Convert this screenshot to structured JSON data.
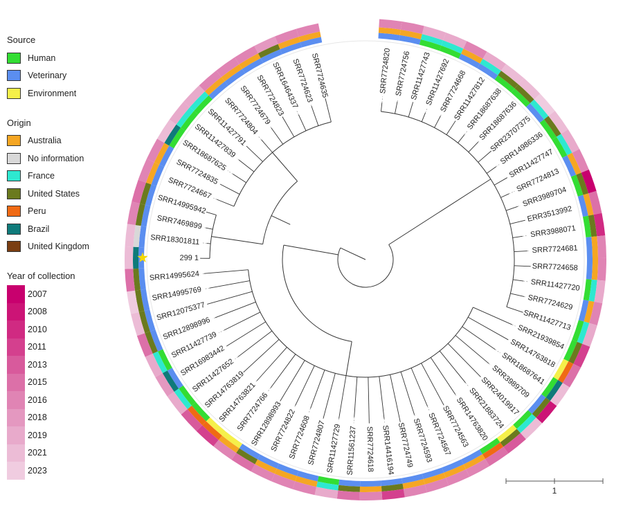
{
  "legend": {
    "source": {
      "title": "Source",
      "items": [
        {
          "label": "Human",
          "color": "#33dd33"
        },
        {
          "label": "Veterinary",
          "color": "#5b8ef0"
        },
        {
          "label": "Environment",
          "color": "#f5f04a"
        }
      ]
    },
    "origin": {
      "title": "Origin",
      "items": [
        {
          "label": "Australia",
          "color": "#f5a623"
        },
        {
          "label": "No information",
          "color": "#d8d8d8"
        },
        {
          "label": "France",
          "color": "#2ee8d0"
        },
        {
          "label": "United States",
          "color": "#6b7a1e"
        },
        {
          "label": "Peru",
          "color": "#f06a14"
        },
        {
          "label": "Brazil",
          "color": "#0f7a7a"
        },
        {
          "label": "United Kingdom",
          "color": "#7a3e12"
        }
      ]
    },
    "year": {
      "title": "Year of collection",
      "items": [
        {
          "label": "2007",
          "color": "#c8006e"
        },
        {
          "label": "2008",
          "color": "#cc1476"
        },
        {
          "label": "2010",
          "color": "#d02a82"
        },
        {
          "label": "2011",
          "color": "#d4408e"
        },
        {
          "label": "2013",
          "color": "#d85a9c"
        },
        {
          "label": "2015",
          "color": "#dc70a8"
        },
        {
          "label": "2016",
          "color": "#e084b4"
        },
        {
          "label": "2018",
          "color": "#e498c0"
        },
        {
          "label": "2019",
          "color": "#e8aacb"
        },
        {
          "label": "2021",
          "color": "#ecbcd6"
        },
        {
          "label": "2023",
          "color": "#f0cce0"
        }
      ]
    }
  },
  "tips": [
    {
      "label": "SRR7724820",
      "source": "Veterinary",
      "origin": "Australia",
      "year": "2016"
    },
    {
      "label": "SRR7724756",
      "source": "Veterinary",
      "origin": "Australia",
      "year": "2016"
    },
    {
      "label": "SRR11427743",
      "source": "Human",
      "origin": "France",
      "year": "2019"
    },
    {
      "label": "SRR11427692",
      "source": "Human",
      "origin": "France",
      "year": "2019"
    },
    {
      "label": "SRR7724668",
      "source": "Veterinary",
      "origin": "Australia",
      "year": "2016"
    },
    {
      "label": "SRR11427812",
      "source": "Veterinary",
      "origin": "France",
      "year": "2019"
    },
    {
      "label": "SRR18687638",
      "source": "Human",
      "origin": "United States",
      "year": "2021"
    },
    {
      "label": "SRR18687636",
      "source": "Human",
      "origin": "United States",
      "year": "2021"
    },
    {
      "label": "SRR23707375",
      "source": "Veterinary",
      "origin": "France",
      "year": "2023"
    },
    {
      "label": "SRR14986336",
      "source": "Human",
      "origin": "United States",
      "year": "2021"
    },
    {
      "label": "SRR11427747",
      "source": "Human",
      "origin": "France",
      "year": "2019"
    },
    {
      "label": "SRR7724813",
      "source": "Veterinary",
      "origin": "Australia",
      "year": "2016"
    },
    {
      "label": "SRR3989704",
      "source": "Human",
      "origin": "United States",
      "year": "2007"
    },
    {
      "label": "ERR3513992",
      "source": "Veterinary",
      "origin": "Australia",
      "year": "2015"
    },
    {
      "label": "SRR3988071",
      "source": "Human",
      "origin": "United States",
      "year": "2010"
    },
    {
      "label": "SRR7724681",
      "source": "Veterinary",
      "origin": "Australia",
      "year": "2016"
    },
    {
      "label": "SRR7724658",
      "source": "Veterinary",
      "origin": "Australia",
      "year": "2016"
    },
    {
      "label": "SRR11427720",
      "source": "Human",
      "origin": "France",
      "year": "2019"
    },
    {
      "label": "SRR7724629",
      "source": "Veterinary",
      "origin": "Australia",
      "year": "2016"
    },
    {
      "label": "SRR11427713",
      "source": "Human",
      "origin": "France",
      "year": "2019"
    },
    {
      "label": "SRR21939854",
      "source": "Human",
      "origin": "United States",
      "year": "2011"
    },
    {
      "label": "SRR14763818",
      "source": "Environment",
      "origin": "Peru",
      "year": "2015"
    },
    {
      "label": "SRR18687641",
      "source": "Human",
      "origin": "Brazil",
      "year": "2021"
    },
    {
      "label": "SRR3989709",
      "source": "Veterinary",
      "origin": "United States",
      "year": "2008"
    },
    {
      "label": "SRR24019917",
      "source": "Human",
      "origin": "France",
      "year": "2021"
    },
    {
      "label": "SRR21883724",
      "source": "Environment",
      "origin": "United States",
      "year": "2013"
    },
    {
      "label": "SRR14763820",
      "source": "Human",
      "origin": "Peru",
      "year": "2015"
    },
    {
      "label": "SRR7724563",
      "source": "Veterinary",
      "origin": "Australia",
      "year": "2016"
    },
    {
      "label": "SRR7724567",
      "source": "Veterinary",
      "origin": "Australia",
      "year": "2016"
    },
    {
      "label": "SRR7724593",
      "source": "Veterinary",
      "origin": "Australia",
      "year": "2016"
    },
    {
      "label": "SRR7724749",
      "source": "Veterinary",
      "origin": "Australia",
      "year": "2016"
    },
    {
      "label": "SRR14416194",
      "source": "Veterinary",
      "origin": "United States",
      "year": "2011"
    },
    {
      "label": "SRR7724618",
      "source": "Veterinary",
      "origin": "Australia",
      "year": "2016"
    },
    {
      "label": "SRR11561237",
      "source": "Veterinary",
      "origin": "United States",
      "year": "2015"
    },
    {
      "label": "SRR11427729",
      "source": "Human",
      "origin": "France",
      "year": "2019"
    },
    {
      "label": "SRR7724807",
      "source": "Veterinary",
      "origin": "Australia",
      "year": "2016"
    },
    {
      "label": "SRR7724608",
      "source": "Veterinary",
      "origin": "Australia",
      "year": "2016"
    },
    {
      "label": "SRR7724822",
      "source": "Veterinary",
      "origin": "Australia",
      "year": "2016"
    },
    {
      "label": "SRR12898993",
      "source": "Veterinary",
      "origin": "United States",
      "year": "2015"
    },
    {
      "label": "SRR7724766",
      "source": "Environment",
      "origin": "Australia",
      "year": "2016"
    },
    {
      "label": "SRR14763821",
      "source": "Environment",
      "origin": "Peru",
      "year": "2011"
    },
    {
      "label": "SRR14763819",
      "source": "Human",
      "origin": "Peru",
      "year": "2013"
    },
    {
      "label": "SRR11427652",
      "source": "Human",
      "origin": "France",
      "year": "2019"
    },
    {
      "label": "SRR16983442",
      "source": "Veterinary",
      "origin": "Brazil",
      "year": "2018"
    },
    {
      "label": "SRR11427739",
      "source": "Human",
      "origin": "France",
      "year": "2019"
    },
    {
      "label": "SRR12898996",
      "source": "Veterinary",
      "origin": "United States",
      "year": "2015"
    },
    {
      "label": "SRR12075377",
      "source": "Veterinary",
      "origin": "United States",
      "year": "2021"
    },
    {
      "label": "SRR14995769",
      "source": "Veterinary",
      "origin": "United States",
      "year": "2023"
    },
    {
      "label": "SRR14995624",
      "source": "Veterinary",
      "origin": "United States",
      "year": "2015"
    },
    {
      "label": "299 1",
      "source": "Veterinary",
      "origin": "Brazil",
      "year": "2021"
    },
    {
      "label": "SRR18301811",
      "source": "Veterinary",
      "origin": "No information",
      "year": "2021"
    },
    {
      "label": "SRR7469899",
      "source": "Veterinary",
      "origin": "United States",
      "year": "2016"
    },
    {
      "label": "SRR14995942",
      "source": "Veterinary",
      "origin": "United States",
      "year": "2015"
    },
    {
      "label": "SRR7724667",
      "source": "Veterinary",
      "origin": "Australia",
      "year": "2016"
    },
    {
      "label": "SRR7724835",
      "source": "Veterinary",
      "origin": "Australia",
      "year": "2016"
    },
    {
      "label": "SRR18687625",
      "source": "Human",
      "origin": "Brazil",
      "year": "2021"
    },
    {
      "label": "SRR11427839",
      "source": "Human",
      "origin": "France",
      "year": "2019"
    },
    {
      "label": "SRR11427791",
      "source": "Human",
      "origin": "France",
      "year": "2019"
    },
    {
      "label": "SRR7724804",
      "source": "Veterinary",
      "origin": "Australia",
      "year": "2016"
    },
    {
      "label": "SRR7724679",
      "source": "Veterinary",
      "origin": "Australia",
      "year": "2016"
    },
    {
      "label": "SRR7724823",
      "source": "Veterinary",
      "origin": "Australia",
      "year": "2016"
    },
    {
      "label": "SRR16464337",
      "source": "Veterinary",
      "origin": "United States",
      "year": "2018"
    },
    {
      "label": "SRR7724623",
      "source": "Veterinary",
      "origin": "Australia",
      "year": "2016"
    },
    {
      "label": "SRR7724635",
      "source": "Veterinary",
      "origin": "Australia",
      "year": "2016"
    }
  ],
  "highlight": {
    "label": "299 1",
    "marker": "star-icon",
    "color": "#f5d800"
  },
  "scale": {
    "label": "1"
  }
}
